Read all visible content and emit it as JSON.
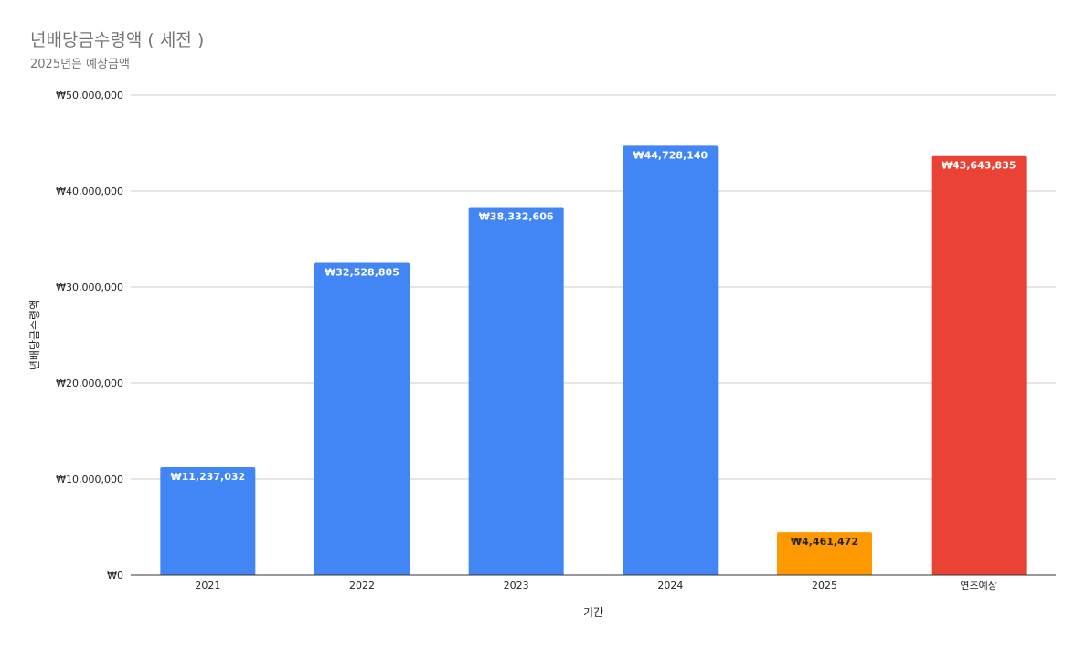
{
  "chart_data": {
    "type": "bar",
    "title": "년배당금수령액 ( 세전 )",
    "subtitle": "2025년은 예상금액",
    "xlabel": "기간",
    "ylabel": "년배당금수령액",
    "categories": [
      "2021",
      "2022",
      "2023",
      "2024",
      "2025",
      "연초예상"
    ],
    "values": [
      11237032,
      32528805,
      38332606,
      44728140,
      4461472,
      43643835
    ],
    "value_labels": [
      "₩11,237,032",
      "₩32,528,805",
      "₩38,332,606",
      "₩44,728,140",
      "₩4,461,472",
      "₩43,643,835"
    ],
    "bar_colors": [
      "#4285f4",
      "#4285f4",
      "#4285f4",
      "#4285f4",
      "#ff9900",
      "#ea4335"
    ],
    "label_colors": [
      "#ffffff",
      "#ffffff",
      "#ffffff",
      "#ffffff",
      "#222222",
      "#ffffff"
    ],
    "ylim": [
      0,
      50000000
    ],
    "yticks": [
      0,
      10000000,
      20000000,
      30000000,
      40000000,
      50000000
    ],
    "ytick_labels": [
      "₩0",
      "₩10,000,000",
      "₩20,000,000",
      "₩30,000,000",
      "₩40,000,000",
      "₩50,000,000"
    ],
    "grid": true,
    "legend": "none"
  }
}
